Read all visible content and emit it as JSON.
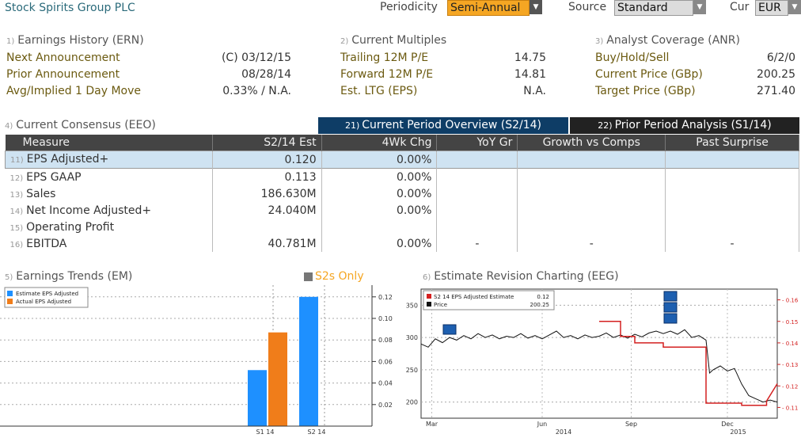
{
  "header": {
    "company": "Stock Spirits Group PLC",
    "periodicity_label": "Periodicity",
    "periodicity_value": "Semi-Annual",
    "source_label": "Source",
    "source_value": "Standard",
    "cur_label": "Cur",
    "cur_value": "EUR"
  },
  "earnings_history": {
    "num": "1)",
    "title": "Earnings History (ERN)",
    "rows": [
      {
        "label": "Next Announcement",
        "value": "(C)  03/12/15"
      },
      {
        "label": "Prior Announcement",
        "value": "08/28/14"
      },
      {
        "label": "Avg/Implied 1 Day Move",
        "value": "0.33% / N.A."
      }
    ]
  },
  "current_multiples": {
    "num": "2)",
    "title": "Current Multiples",
    "rows": [
      {
        "label": "Trailing 12M P/E",
        "value": "14.75"
      },
      {
        "label": "Forward 12M P/E",
        "value": "14.81"
      },
      {
        "label": "Est. LTG (EPS)",
        "value": "N.A."
      }
    ]
  },
  "analyst_coverage": {
    "num": "3)",
    "title": "Analyst Coverage (ANR)",
    "rows": [
      {
        "label": "Buy/Hold/Sell",
        "value": "6/2/0"
      },
      {
        "label": "Current Price (GBp)",
        "value": "200.25"
      },
      {
        "label": "Target Price (GBp)",
        "value": "271.40"
      }
    ]
  },
  "consensus": {
    "num": "4)",
    "title": "Current Consensus (EEO)",
    "tabs": [
      {
        "num": "21)",
        "label": "Current Period Overview (S2/14)"
      },
      {
        "num": "22)",
        "label": "Prior Period Analysis (S1/14)"
      }
    ],
    "columns": [
      "Measure",
      "S2/14 Est",
      "4Wk Chg",
      "YoY Gr",
      "Growth vs Comps",
      "Past Surprise"
    ],
    "rows": [
      {
        "num": "11)",
        "measure": "EPS Adjusted+",
        "est": "0.120",
        "chg": "0.00%",
        "yoy": "",
        "comps": "",
        "surprise": ""
      },
      {
        "num": "12)",
        "measure": "EPS GAAP",
        "est": "0.113",
        "chg": "0.00%",
        "yoy": "",
        "comps": "",
        "surprise": ""
      },
      {
        "num": "13)",
        "measure": "Sales",
        "est": "186.630M",
        "chg": "0.00%",
        "yoy": "",
        "comps": "",
        "surprise": ""
      },
      {
        "num": "14)",
        "measure": "Net Income Adjusted+",
        "est": "24.040M",
        "chg": "0.00%",
        "yoy": "",
        "comps": "",
        "surprise": ""
      },
      {
        "num": "15)",
        "measure": "Operating Profit",
        "est": "",
        "chg": "",
        "yoy": "",
        "comps": "",
        "surprise": ""
      },
      {
        "num": "16)",
        "measure": "EBITDA",
        "est": "40.781M",
        "chg": "0.00%",
        "yoy": "-",
        "comps": "-",
        "surprise": "-"
      }
    ]
  },
  "trends": {
    "num": "5)",
    "title": "Earnings Trends (EM)",
    "toggle_label": "S2s Only"
  },
  "revision": {
    "num": "6)",
    "title": "Estimate Revision Charting (EEG)"
  },
  "colors": {
    "accent_orange": "#f5a623",
    "bar_blue": "#1e90ff",
    "bar_orange": "#f07d1a",
    "estimate_red": "#d42020",
    "tab_active": "#0e3d66",
    "header_dark": "#444444"
  },
  "chart_data": [
    {
      "type": "bar",
      "categories": [
        "S1 14",
        "S2 14"
      ],
      "series": [
        {
          "name": "Estimate EPS Adjusted",
          "values": [
            0.052,
            0.12
          ]
        },
        {
          "name": "Actual EPS Adjusted",
          "values": [
            0.087,
            null
          ]
        }
      ],
      "yticks": [
        "0.02",
        "0.04",
        "0.06",
        "0.08",
        "0.10",
        "0.12"
      ],
      "ylim": [
        0,
        0.125
      ]
    },
    {
      "type": "line",
      "legend": [
        {
          "label": "S2 14 EPS Adjusted Estimate",
          "value": "0.12"
        },
        {
          "label": "Price",
          "value": "200.25"
        }
      ],
      "x_month_labels": [
        "Mar",
        "Jun",
        "Sep",
        "Dec"
      ],
      "x_year_labels": [
        "2014",
        "2015"
      ],
      "left_ticks": [
        "200",
        "250",
        "300",
        "350"
      ],
      "right_ticks": [
        "0.11",
        "0.12",
        "0.13",
        "0.14",
        "0.15",
        "0.16"
      ],
      "left_range": [
        175,
        375
      ],
      "right_range": [
        0.105,
        0.165
      ],
      "price_series": [
        [
          0,
          290
        ],
        [
          0.02,
          285
        ],
        [
          0.04,
          298
        ],
        [
          0.06,
          292
        ],
        [
          0.08,
          300
        ],
        [
          0.1,
          296
        ],
        [
          0.12,
          303
        ],
        [
          0.14,
          298
        ],
        [
          0.16,
          306
        ],
        [
          0.18,
          300
        ],
        [
          0.2,
          304
        ],
        [
          0.22,
          298
        ],
        [
          0.24,
          302
        ],
        [
          0.26,
          300
        ],
        [
          0.28,
          306
        ],
        [
          0.3,
          299
        ],
        [
          0.32,
          303
        ],
        [
          0.34,
          298
        ],
        [
          0.36,
          304
        ],
        [
          0.38,
          310
        ],
        [
          0.4,
          300
        ],
        [
          0.42,
          303
        ],
        [
          0.44,
          298
        ],
        [
          0.46,
          304
        ],
        [
          0.48,
          300
        ],
        [
          0.5,
          302
        ],
        [
          0.52,
          307
        ],
        [
          0.54,
          300
        ],
        [
          0.56,
          304
        ],
        [
          0.58,
          299
        ],
        [
          0.6,
          305
        ],
        [
          0.62,
          301
        ],
        [
          0.64,
          307
        ],
        [
          0.66,
          310
        ],
        [
          0.68,
          306
        ],
        [
          0.7,
          310
        ],
        [
          0.72,
          305
        ],
        [
          0.74,
          312
        ],
        [
          0.76,
          300
        ],
        [
          0.78,
          303
        ],
        [
          0.8,
          296
        ],
        [
          0.805,
          270
        ],
        [
          0.81,
          245
        ],
        [
          0.82,
          250
        ],
        [
          0.84,
          256
        ],
        [
          0.86,
          248
        ],
        [
          0.88,
          252
        ],
        [
          0.9,
          228
        ],
        [
          0.92,
          210
        ],
        [
          0.94,
          205
        ],
        [
          0.96,
          200
        ],
        [
          0.98,
          203
        ],
        [
          1.0,
          200
        ]
      ],
      "estimate_series": [
        [
          0,
          null
        ],
        [
          0.5,
          null
        ],
        [
          0.5,
          0.15
        ],
        [
          0.56,
          0.15
        ],
        [
          0.56,
          0.143
        ],
        [
          0.6,
          0.143
        ],
        [
          0.6,
          0.14
        ],
        [
          0.68,
          0.14
        ],
        [
          0.68,
          0.138
        ],
        [
          0.8,
          0.138
        ],
        [
          0.8,
          0.112
        ],
        [
          0.9,
          0.112
        ],
        [
          0.9,
          0.111
        ],
        [
          0.97,
          0.111
        ],
        [
          0.97,
          0.113
        ],
        [
          1.0,
          0.121
        ]
      ]
    }
  ]
}
